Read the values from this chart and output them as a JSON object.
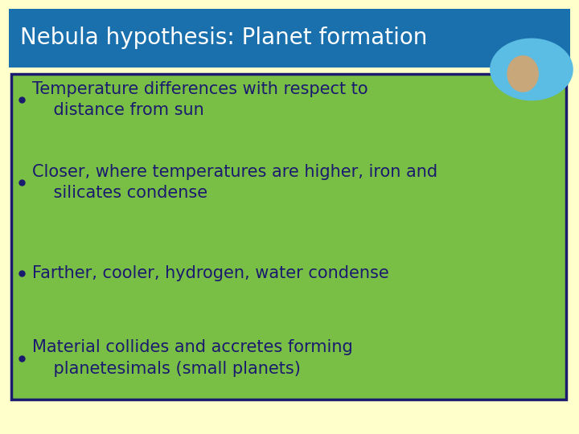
{
  "title": "Nebula hypothesis: Planet formation",
  "title_bg": "#1a6fad",
  "title_color": "#ffffff",
  "slide_bg": "#ffffcc",
  "content_bg": "#7abf45",
  "content_border": "#1a1a6e",
  "text_color": "#1a1a6e",
  "bullets": [
    "Temperature differences with respect to\n    distance from sun",
    "Closer, where temperatures are higher, iron and\n    silicates condense",
    "Farther, cooler, hydrogen, water condense",
    "Material collides and accretes forming\n    planetesimals (small planets)"
  ],
  "title_fontsize": 20,
  "bullet_fontsize": 15,
  "globe_color": "#5bbce4",
  "globe_land_color": "#c8a87a"
}
